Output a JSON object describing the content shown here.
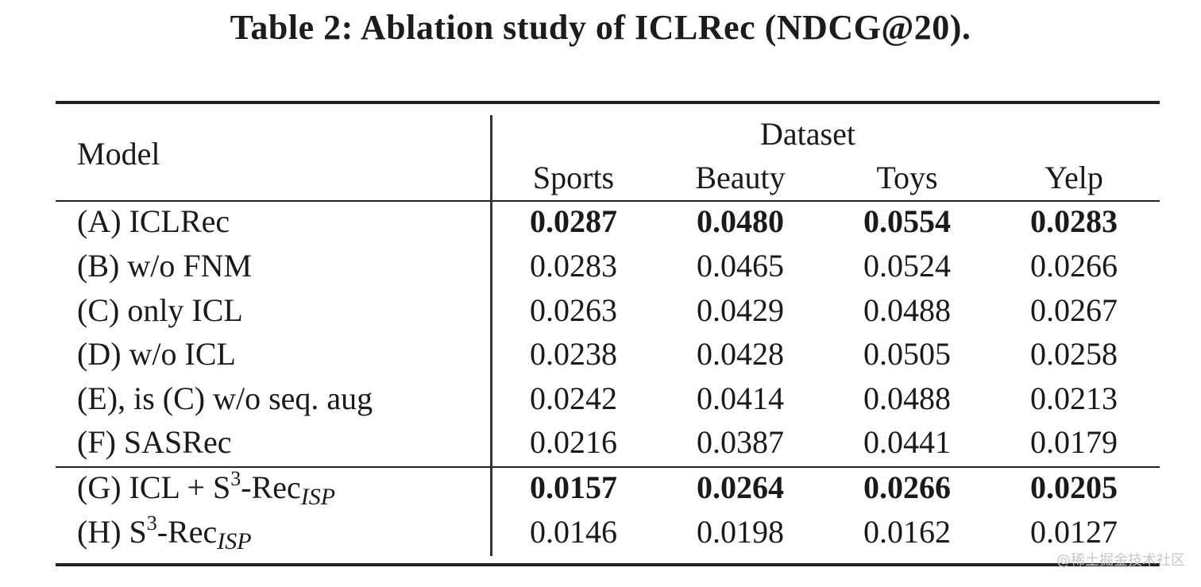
{
  "caption": "Table 2: Ablation study of ICLRec (NDCG@20).",
  "table": {
    "model_header": "Model",
    "group_header": "Dataset",
    "columns": [
      "Sports",
      "Beauty",
      "Toys",
      "Yelp"
    ],
    "rows": [
      {
        "label": "(A) ICLRec",
        "values": [
          "0.0287",
          "0.0480",
          "0.0554",
          "0.0283"
        ],
        "bold": true
      },
      {
        "label": "(B) w/o FNM",
        "values": [
          "0.0283",
          "0.0465",
          "0.0524",
          "0.0266"
        ],
        "bold": false
      },
      {
        "label": "(C) only ICL",
        "values": [
          "0.0263",
          "0.0429",
          "0.0488",
          "0.0267"
        ],
        "bold": false
      },
      {
        "label": "(D) w/o ICL",
        "values": [
          "0.0238",
          "0.0428",
          "0.0505",
          "0.0258"
        ],
        "bold": false
      },
      {
        "label": "(E), is (C) w/o seq. aug",
        "values": [
          "0.0242",
          "0.0414",
          "0.0488",
          "0.0213"
        ],
        "bold": false
      },
      {
        "label": "(F) SASRec",
        "values": [
          "0.0216",
          "0.0387",
          "0.0441",
          "0.0179"
        ],
        "bold": false
      },
      {
        "label_prefix": "(G) ICL + S",
        "label_sup": "3",
        "label_mid": "-Rec",
        "label_sub": "ISP",
        "values": [
          "0.0157",
          "0.0264",
          "0.0266",
          "0.0205"
        ],
        "bold": true
      },
      {
        "label_prefix": "(H) S",
        "label_sup": "3",
        "label_mid": "-Rec",
        "label_sub": "ISP",
        "values": [
          "0.0146",
          "0.0198",
          "0.0162",
          "0.0127"
        ],
        "bold": false
      }
    ]
  },
  "watermark": "@稀土掘金技术社区"
}
